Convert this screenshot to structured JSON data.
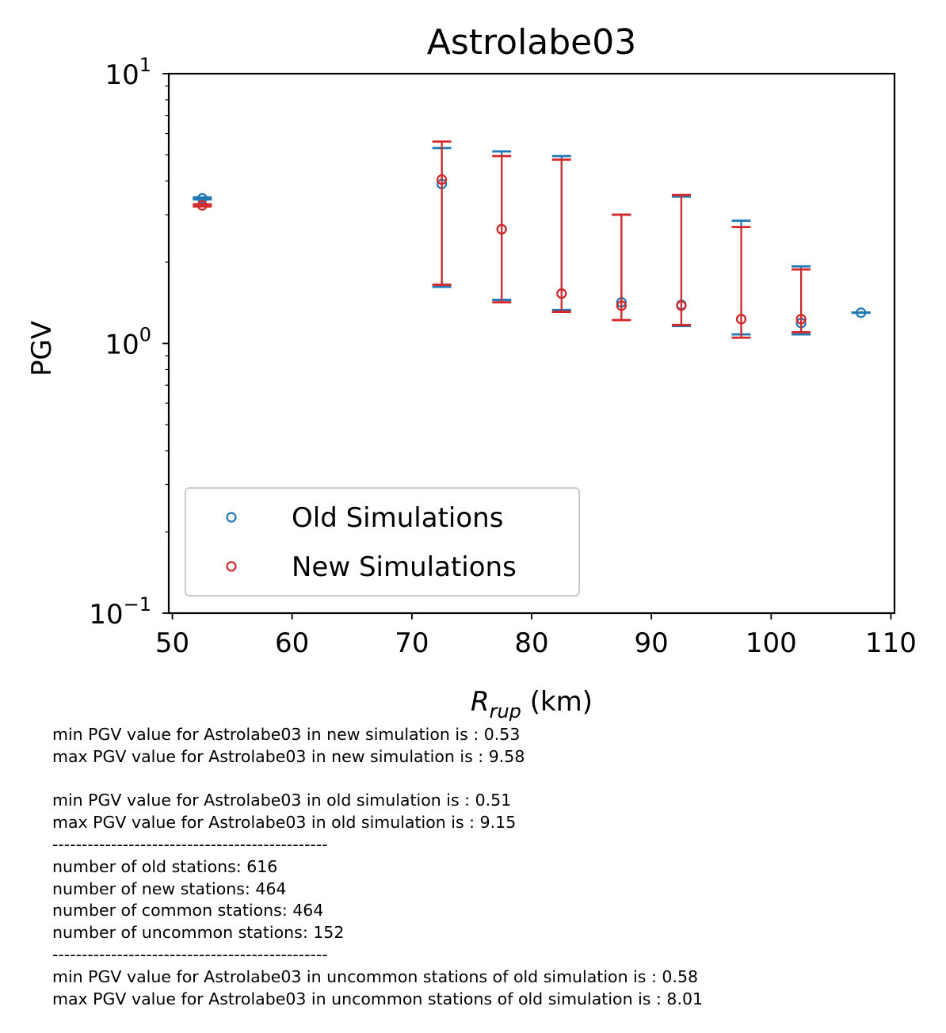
{
  "chart_data": {
    "type": "scatter",
    "title": "Astrolabe03",
    "ylabel": "PGV",
    "xlabel_main": "R",
    "xlabel_sub": "rup",
    "xlabel_unit": " (km)",
    "xlim": [
      49.7,
      110.3
    ],
    "ylim": [
      0.1,
      10
    ],
    "yscale": "log",
    "grid": false,
    "legend_position": "lower-left",
    "x_ticks": [
      50,
      60,
      70,
      80,
      90,
      100,
      110
    ],
    "y_ticks": [
      {
        "value": 0.1,
        "base": "10",
        "exp": "−1"
      },
      {
        "value": 1,
        "base": "10",
        "exp": "0"
      },
      {
        "value": 10,
        "base": "10",
        "exp": "1"
      }
    ],
    "series": [
      {
        "name": "Old Simulations",
        "color": "#1f77b4",
        "points": [
          {
            "x": 52.5,
            "y": 3.45,
            "lo": 3.42,
            "hi": 3.48
          },
          {
            "x": 72.5,
            "y": 3.9,
            "lo": 1.62,
            "hi": 5.3
          },
          {
            "x": 77.5,
            "y": 2.65,
            "lo": 1.45,
            "hi": 5.15
          },
          {
            "x": 82.5,
            "y": 1.53,
            "lo": 1.33,
            "hi": 4.95
          },
          {
            "x": 87.5,
            "y": 1.42,
            "lo": 1.22,
            "hi": 3.0
          },
          {
            "x": 92.5,
            "y": 1.39,
            "lo": 1.16,
            "hi": 3.5
          },
          {
            "x": 97.5,
            "y": 1.23,
            "lo": 1.08,
            "hi": 2.85
          },
          {
            "x": 102.5,
            "y": 1.19,
            "lo": 1.08,
            "hi": 1.93
          },
          {
            "x": 107.5,
            "y": 1.3,
            "lo": 1.3,
            "hi": 1.3
          }
        ]
      },
      {
        "name": "New Simulations",
        "color": "#d62728",
        "points": [
          {
            "x": 52.5,
            "y": 3.25,
            "lo": 3.22,
            "hi": 3.28
          },
          {
            "x": 72.5,
            "y": 4.05,
            "lo": 1.65,
            "hi": 5.6
          },
          {
            "x": 77.5,
            "y": 2.65,
            "lo": 1.42,
            "hi": 4.95
          },
          {
            "x": 82.5,
            "y": 1.53,
            "lo": 1.31,
            "hi": 4.8
          },
          {
            "x": 87.5,
            "y": 1.38,
            "lo": 1.22,
            "hi": 3.0
          },
          {
            "x": 92.5,
            "y": 1.38,
            "lo": 1.17,
            "hi": 3.55
          },
          {
            "x": 97.5,
            "y": 1.23,
            "lo": 1.05,
            "hi": 2.7
          },
          {
            "x": 102.5,
            "y": 1.23,
            "lo": 1.1,
            "hi": 1.88
          }
        ]
      }
    ]
  },
  "notes": [
    "min PGV value for Astrolabe03 in new simulation is : 0.53",
    "max PGV value for Astrolabe03 in new simulation is : 9.58",
    "",
    "min PGV value for Astrolabe03 in old simulation is : 0.51",
    "max PGV value for Astrolabe03 in old simulation is : 9.15",
    "-----------------------------------------------",
    "number of old stations: 616",
    "number of new stations: 464",
    "number of common stations: 464",
    "number of uncommon stations: 152",
    "-----------------------------------------------",
    "min PGV value for Astrolabe03 in uncommon stations of old simulation is : 0.58",
    "max PGV value for Astrolabe03 in uncommon stations of old simulation is : 8.01"
  ]
}
